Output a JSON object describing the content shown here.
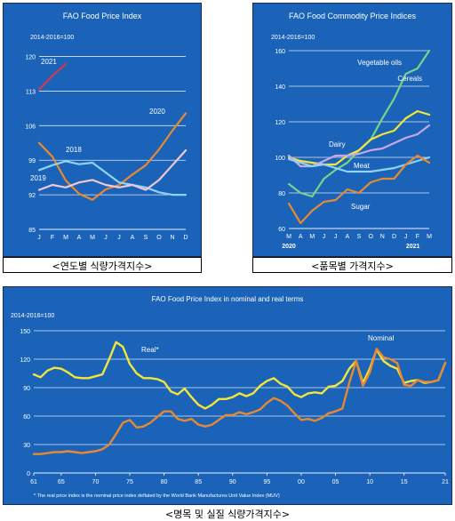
{
  "colors": {
    "panel_bg": "#1a63b8",
    "grid": "#ffffff",
    "text": "#ffffff",
    "orange": "#e8892f",
    "light_blue": "#8fd3f4",
    "pink": "#f2c8d6",
    "red": "#d8364a",
    "green": "#7ad18a",
    "yellow": "#f3e53a",
    "lavender": "#c8a8e8"
  },
  "captions": {
    "left": "<연도별 식량가격지수>",
    "right": "<품목별 가격지수>",
    "bottom": "<명목 및 실질 식량가격지수>"
  },
  "chart_data": [
    {
      "type": "line",
      "title": "FAO Food Price Index",
      "unit_label": "2014-2016=100",
      "categories": [
        "J",
        "F",
        "M",
        "A",
        "M",
        "J",
        "J",
        "A",
        "S",
        "O",
        "N",
        "D"
      ],
      "yticks": [
        85,
        92,
        99,
        106,
        113,
        120
      ],
      "ylim": [
        85,
        121
      ],
      "grid": true,
      "series": [
        {
          "name": "2021",
          "color": "#d8364a",
          "values": [
            113.3,
            116.1,
            118.5,
            null,
            null,
            null,
            null,
            null,
            null,
            null,
            null,
            null
          ]
        },
        {
          "name": "2020",
          "color": "#e8892f",
          "values": [
            102.5,
            99.7,
            94.9,
            92.2,
            91.0,
            93.1,
            94.0,
            96.1,
            98.0,
            101.2,
            105.0,
            108.5
          ]
        },
        {
          "name": "2018",
          "color": "#8fd3f4",
          "values": [
            97.0,
            98.0,
            98.8,
            98.2,
            98.5,
            96.5,
            94.5,
            94.0,
            93.5,
            92.5,
            92.0,
            92.0
          ]
        },
        {
          "name": "2019",
          "color": "#f2c8d6",
          "values": [
            93.0,
            94.0,
            93.5,
            94.5,
            95.0,
            94.0,
            93.5,
            94.0,
            93.0,
            95.0,
            98.0,
            101.0
          ]
        }
      ]
    },
    {
      "type": "line",
      "title": "FAO Food Commodity Price Indices",
      "unit_label": "2014-2016=100",
      "categories": [
        "M",
        "A",
        "M",
        "J",
        "J",
        "A",
        "S",
        "O",
        "N",
        "D",
        "J",
        "F",
        "M"
      ],
      "xgroups": [
        {
          "label": "2020",
          "start": 0
        },
        {
          "label": "2021",
          "start": 10
        }
      ],
      "yticks": [
        60,
        80,
        100,
        120,
        140,
        160
      ],
      "ylim": [
        60,
        160
      ],
      "grid": true,
      "series": [
        {
          "name": "Vegetable oils",
          "color": "#7ad18a",
          "values": [
            85,
            80,
            78,
            88,
            93,
            97,
            104,
            110,
            122,
            133,
            147,
            150,
            160
          ]
        },
        {
          "name": "Cereals",
          "color": "#f3e53a",
          "values": [
            100,
            98,
            97,
            96,
            96,
            101,
            104,
            110,
            113,
            115,
            122,
            126,
            124
          ]
        },
        {
          "name": "Dairy",
          "color": "#c8a8e8",
          "values": [
            101,
            95,
            95,
            98,
            101,
            101,
            102,
            104,
            105,
            108,
            111,
            113,
            118
          ]
        },
        {
          "name": "Meat",
          "color": "#8fd3f4",
          "values": [
            99,
            97,
            95,
            96,
            94,
            92,
            92,
            92,
            93,
            94,
            96,
            98,
            100
          ]
        },
        {
          "name": "Sugar",
          "color": "#e8892f",
          "values": [
            74,
            63,
            70,
            75,
            76,
            82,
            80,
            86,
            88,
            88,
            96,
            101,
            97
          ]
        }
      ]
    },
    {
      "type": "line",
      "title": "FAO Food Price Index in nominal and real terms",
      "unit_label": "2014-2016=100",
      "xticks": [
        "61",
        "65",
        "70",
        "75",
        "80",
        "85",
        "90",
        "95",
        "00",
        "05",
        "10",
        "15",
        "21"
      ],
      "xrange": [
        1961,
        2021
      ],
      "yticks": [
        0,
        30,
        60,
        90,
        120,
        150
      ],
      "ylim": [
        0,
        150
      ],
      "grid": true,
      "footnote": "* The real price index is the nominal price index deflated by the World Bank Manufactures Unit Value Index (MUV)",
      "series": [
        {
          "name": "Real*",
          "color": "#f3e53a",
          "x": [
            1961,
            1962,
            1963,
            1964,
            1965,
            1966,
            1967,
            1968,
            1969,
            1970,
            1971,
            1972,
            1973,
            1974,
            1975,
            1976,
            1977,
            1978,
            1979,
            1980,
            1981,
            1982,
            1983,
            1984,
            1985,
            1986,
            1987,
            1988,
            1989,
            1990,
            1991,
            1992,
            1993,
            1994,
            1995,
            1996,
            1997,
            1998,
            1999,
            2000,
            2001,
            2002,
            2003,
            2004,
            2005,
            2006,
            2007,
            2008,
            2009,
            2010,
            2011,
            2012,
            2013,
            2014,
            2015,
            2016,
            2017,
            2018,
            2019,
            2020,
            2021
          ],
          "y": [
            104,
            101,
            108,
            111,
            110,
            106,
            101,
            100,
            100,
            102,
            104,
            120,
            138,
            133,
            115,
            105,
            100,
            100,
            99,
            96,
            86,
            83,
            89,
            80,
            72,
            68,
            72,
            78,
            78,
            80,
            84,
            81,
            84,
            92,
            97,
            100,
            94,
            91,
            83,
            80,
            84,
            85,
            84,
            91,
            92,
            97,
            110,
            118,
            95,
            110,
            130,
            118,
            113,
            110,
            95,
            97,
            98,
            95,
            96,
            98,
            116
          ]
        },
        {
          "name": "Nominal",
          "color": "#e8892f",
          "x": [
            1961,
            1962,
            1963,
            1964,
            1965,
            1966,
            1967,
            1968,
            1969,
            1970,
            1971,
            1972,
            1973,
            1974,
            1975,
            1976,
            1977,
            1978,
            1979,
            1980,
            1981,
            1982,
            1983,
            1984,
            1985,
            1986,
            1987,
            1988,
            1989,
            1990,
            1991,
            1992,
            1993,
            1994,
            1995,
            1996,
            1997,
            1998,
            1999,
            2000,
            2001,
            2002,
            2003,
            2004,
            2005,
            2006,
            2007,
            2008,
            2009,
            2010,
            2011,
            2012,
            2013,
            2014,
            2015,
            2016,
            2017,
            2018,
            2019,
            2020,
            2021
          ],
          "y": [
            20,
            20,
            21,
            22,
            22,
            23,
            22,
            21,
            22,
            23,
            25,
            30,
            41,
            53,
            56,
            48,
            49,
            53,
            59,
            65,
            65,
            57,
            55,
            57,
            51,
            49,
            51,
            56,
            61,
            61,
            64,
            62,
            64,
            67,
            74,
            79,
            76,
            71,
            63,
            56,
            57,
            55,
            58,
            63,
            65,
            68,
            95,
            118,
            92,
            106,
            131,
            122,
            120,
            116,
            93,
            92,
            98,
            96,
            96,
            98,
            116
          ]
        }
      ]
    }
  ]
}
